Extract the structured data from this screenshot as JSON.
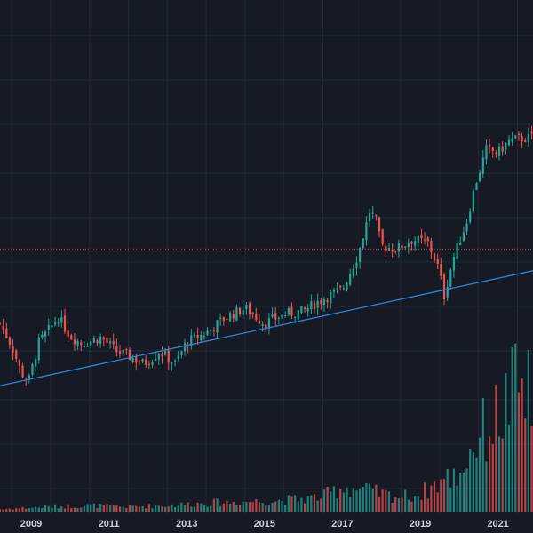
{
  "chart_data": {
    "type": "candlestick",
    "title": "",
    "xlabel": "",
    "ylabel": "",
    "x_ticks": [
      "2009",
      "2011",
      "2013",
      "2015",
      "2017",
      "2019",
      "2021"
    ],
    "x_range": [
      2008.2,
      2021.9
    ],
    "price_range": [
      0,
      10
    ],
    "volume_range": [
      0,
      10
    ],
    "grid": true,
    "colors": {
      "background": "#161a25",
      "grid": "#232836",
      "up": "#26a69a",
      "down": "#ef5350",
      "trendline": "#2f86d6",
      "dashed_level": "#ef5350",
      "text": "#d1d4dc"
    },
    "close_anchors": [
      [
        2008.2,
        5.6
      ],
      [
        2008.5,
        4.9
      ],
      [
        2008.75,
        4.0
      ],
      [
        2008.95,
        3.8
      ],
      [
        2009.2,
        5.0
      ],
      [
        2009.4,
        5.3
      ],
      [
        2009.7,
        5.8
      ],
      [
        2010.0,
        5.2
      ],
      [
        2010.3,
        4.95
      ],
      [
        2010.8,
        5.15
      ],
      [
        2011.2,
        4.7
      ],
      [
        2011.6,
        4.5
      ],
      [
        2011.9,
        4.3
      ],
      [
        2012.3,
        4.7
      ],
      [
        2012.7,
        4.3
      ],
      [
        2013.0,
        5.0
      ],
      [
        2013.5,
        5.3
      ],
      [
        2014.0,
        5.8
      ],
      [
        2014.5,
        6.1
      ],
      [
        2015.0,
        5.6
      ],
      [
        2015.5,
        5.9
      ],
      [
        2016.0,
        6.0
      ],
      [
        2016.5,
        6.4
      ],
      [
        2017.0,
        6.7
      ],
      [
        2017.4,
        7.8
      ],
      [
        2017.7,
        9.2
      ],
      [
        2017.85,
        9.0
      ],
      [
        2018.0,
        8.1
      ],
      [
        2018.4,
        8.0
      ],
      [
        2018.8,
        8.3
      ],
      [
        2019.2,
        8.2
      ],
      [
        2019.5,
        7.3
      ],
      [
        2019.6,
        6.4
      ],
      [
        2019.85,
        7.7
      ],
      [
        2020.2,
        8.9
      ],
      [
        2020.4,
        10.0
      ],
      [
        2020.7,
        11.2
      ],
      [
        2021.0,
        11.1
      ],
      [
        2021.3,
        11.5
      ],
      [
        2021.9,
        11.6
      ]
    ],
    "volume_anchors": [
      [
        2008.2,
        0.1
      ],
      [
        2009.5,
        0.2
      ],
      [
        2010.5,
        0.25
      ],
      [
        2011.5,
        0.2
      ],
      [
        2012.5,
        0.25
      ],
      [
        2013.5,
        0.35
      ],
      [
        2014.5,
        0.4
      ],
      [
        2015.5,
        0.45
      ],
      [
        2016.5,
        0.6
      ],
      [
        2017.0,
        1.0
      ],
      [
        2017.5,
        0.9
      ],
      [
        2018.0,
        0.7
      ],
      [
        2018.5,
        0.6
      ],
      [
        2019.0,
        0.7
      ],
      [
        2019.5,
        1.2
      ],
      [
        2020.0,
        1.5
      ],
      [
        2020.4,
        2.8
      ],
      [
        2020.8,
        3.5
      ],
      [
        2021.0,
        3.8
      ],
      [
        2021.3,
        4.5
      ],
      [
        2021.5,
        5.0
      ],
      [
        2021.9,
        4.5
      ]
    ],
    "trendline": {
      "x1": 2008.2,
      "y1": 3.6,
      "x2": 2021.9,
      "y2": 7.3
    },
    "dashed_level": 8.0
  }
}
